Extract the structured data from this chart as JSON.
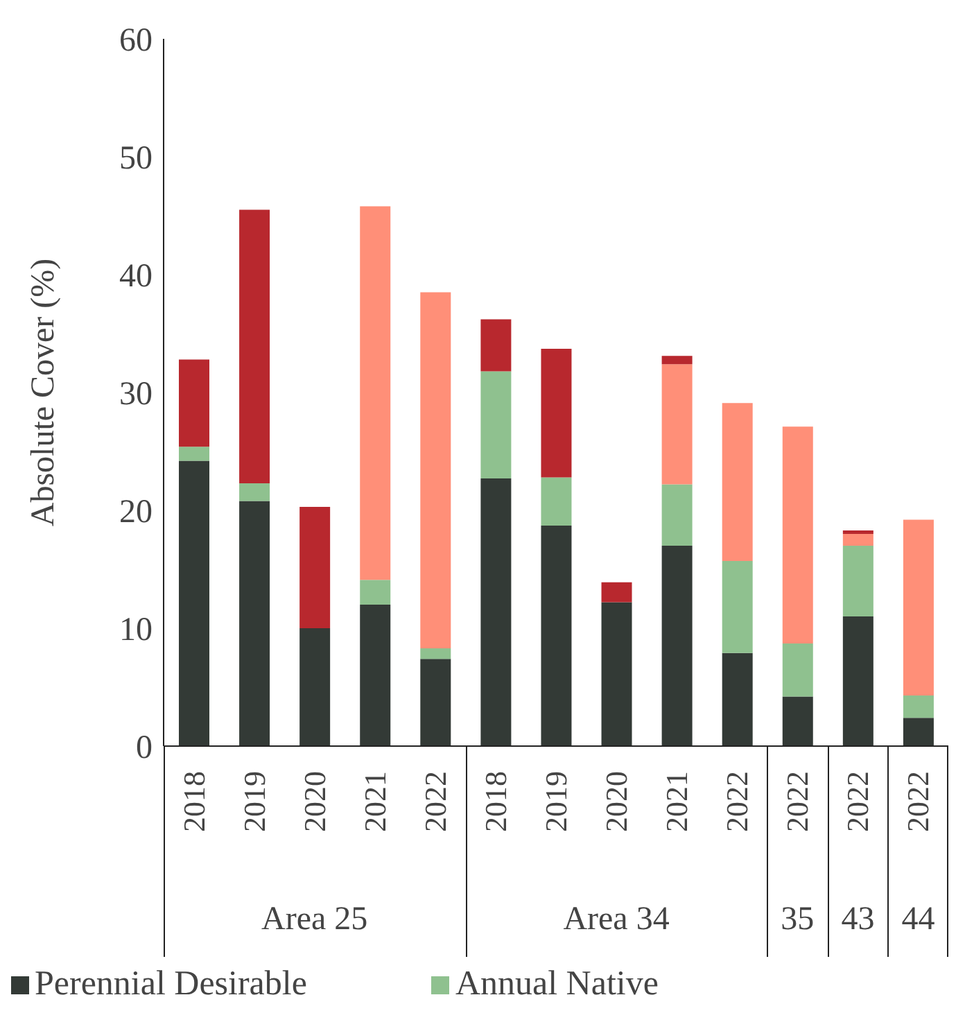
{
  "chart_data": {
    "type": "bar",
    "stacked": true,
    "ylabel": "Absolute Cover (%)",
    "categories": [
      "2018",
      "2019",
      "2020",
      "2021",
      "2022",
      "2018",
      "2019",
      "2020",
      "2021",
      "2022",
      "2022",
      "2022",
      "2022"
    ],
    "series": [
      {
        "name": "Perennial Desirable",
        "color": "#333a36",
        "values": [
          24.2,
          20.8,
          10.0,
          12.0,
          7.4,
          22.7,
          18.7,
          12.2,
          17.0,
          7.9,
          4.2,
          11.0,
          2.4
        ]
      },
      {
        "name": "Annual Native",
        "color": "#8fc18f",
        "values": [
          1.2,
          1.5,
          0,
          2.1,
          0.9,
          9.1,
          4.1,
          0,
          5.2,
          7.8,
          4.5,
          6.0,
          1.9
        ]
      },
      {
        "color": "#ff8f78",
        "values": [
          0,
          0,
          0,
          31.7,
          30.2,
          0,
          0,
          0,
          10.2,
          13.4,
          18.4,
          1.0,
          14.9
        ]
      },
      {
        "color": "#b8282e",
        "values": [
          7.4,
          23.2,
          10.3,
          0,
          0,
          4.4,
          10.9,
          1.7,
          0.7,
          0,
          0,
          0.3,
          0
        ]
      }
    ],
    "ylim": [
      0,
      60
    ],
    "yticks": [
      0,
      10,
      20,
      30,
      40,
      50,
      60
    ],
    "legend": "bottom",
    "annotations": [
      "Area 25",
      "Area 34",
      "35",
      "43",
      "44"
    ]
  }
}
